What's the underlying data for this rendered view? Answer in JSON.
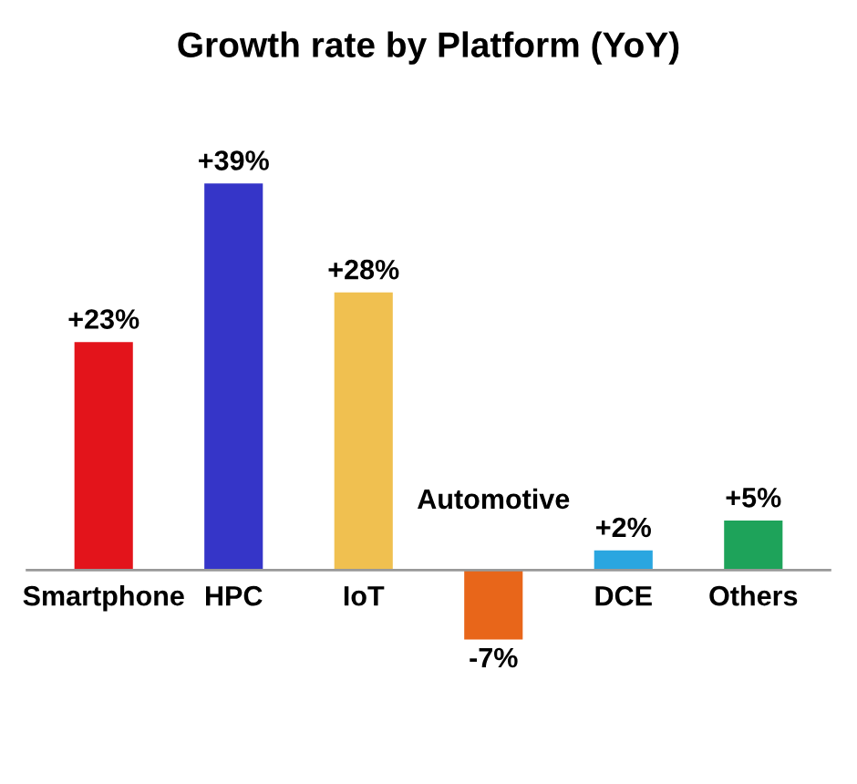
{
  "chart_data": {
    "type": "bar",
    "title": "Growth rate by Platform (YoY)",
    "categories": [
      "Smartphone",
      "HPC",
      "IoT",
      "Automotive",
      "DCE",
      "Others"
    ],
    "values": [
      23,
      39,
      28,
      -7,
      2,
      5
    ],
    "colors": [
      "#e3141b",
      "#3535c8",
      "#f0c050",
      "#e8661a",
      "#2aa6e0",
      "#1ea35a"
    ],
    "value_labels": [
      "+23%",
      "+39%",
      "+28%",
      "-7%",
      "+2%",
      "+5%"
    ]
  }
}
